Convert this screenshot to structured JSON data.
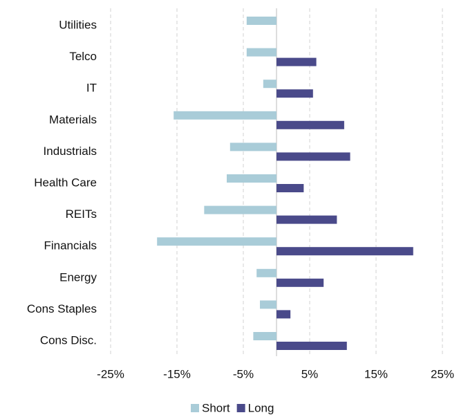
{
  "chart_data": {
    "type": "hbar",
    "categories": [
      "Utilities",
      "Telco",
      "IT",
      "Materials",
      "Industrials",
      "Health Care",
      "REITs",
      "Financials",
      "Energy",
      "Cons Staples",
      "Cons Disc."
    ],
    "series": [
      {
        "name": "Short",
        "color": "#a9ccd8",
        "values": [
          -4.5,
          -4.5,
          -2.0,
          -15.5,
          -7.0,
          -7.5,
          -10.9,
          -18.0,
          -3.0,
          -2.5,
          -3.5
        ]
      },
      {
        "name": "Long",
        "color": "#4a4a8a",
        "values": [
          0,
          6.0,
          5.5,
          10.2,
          11.1,
          4.1,
          9.1,
          20.6,
          7.1,
          2.1,
          10.6
        ]
      }
    ],
    "xlim": [
      -25,
      25
    ],
    "xticks": [
      {
        "value": -25,
        "label": "-25%"
      },
      {
        "value": -15,
        "label": "-15%"
      },
      {
        "value": -5,
        "label": "-5%"
      },
      {
        "value": 5,
        "label": "5%"
      },
      {
        "value": 15,
        "label": "15%"
      },
      {
        "value": 25,
        "label": "25%"
      }
    ],
    "grid": true
  }
}
